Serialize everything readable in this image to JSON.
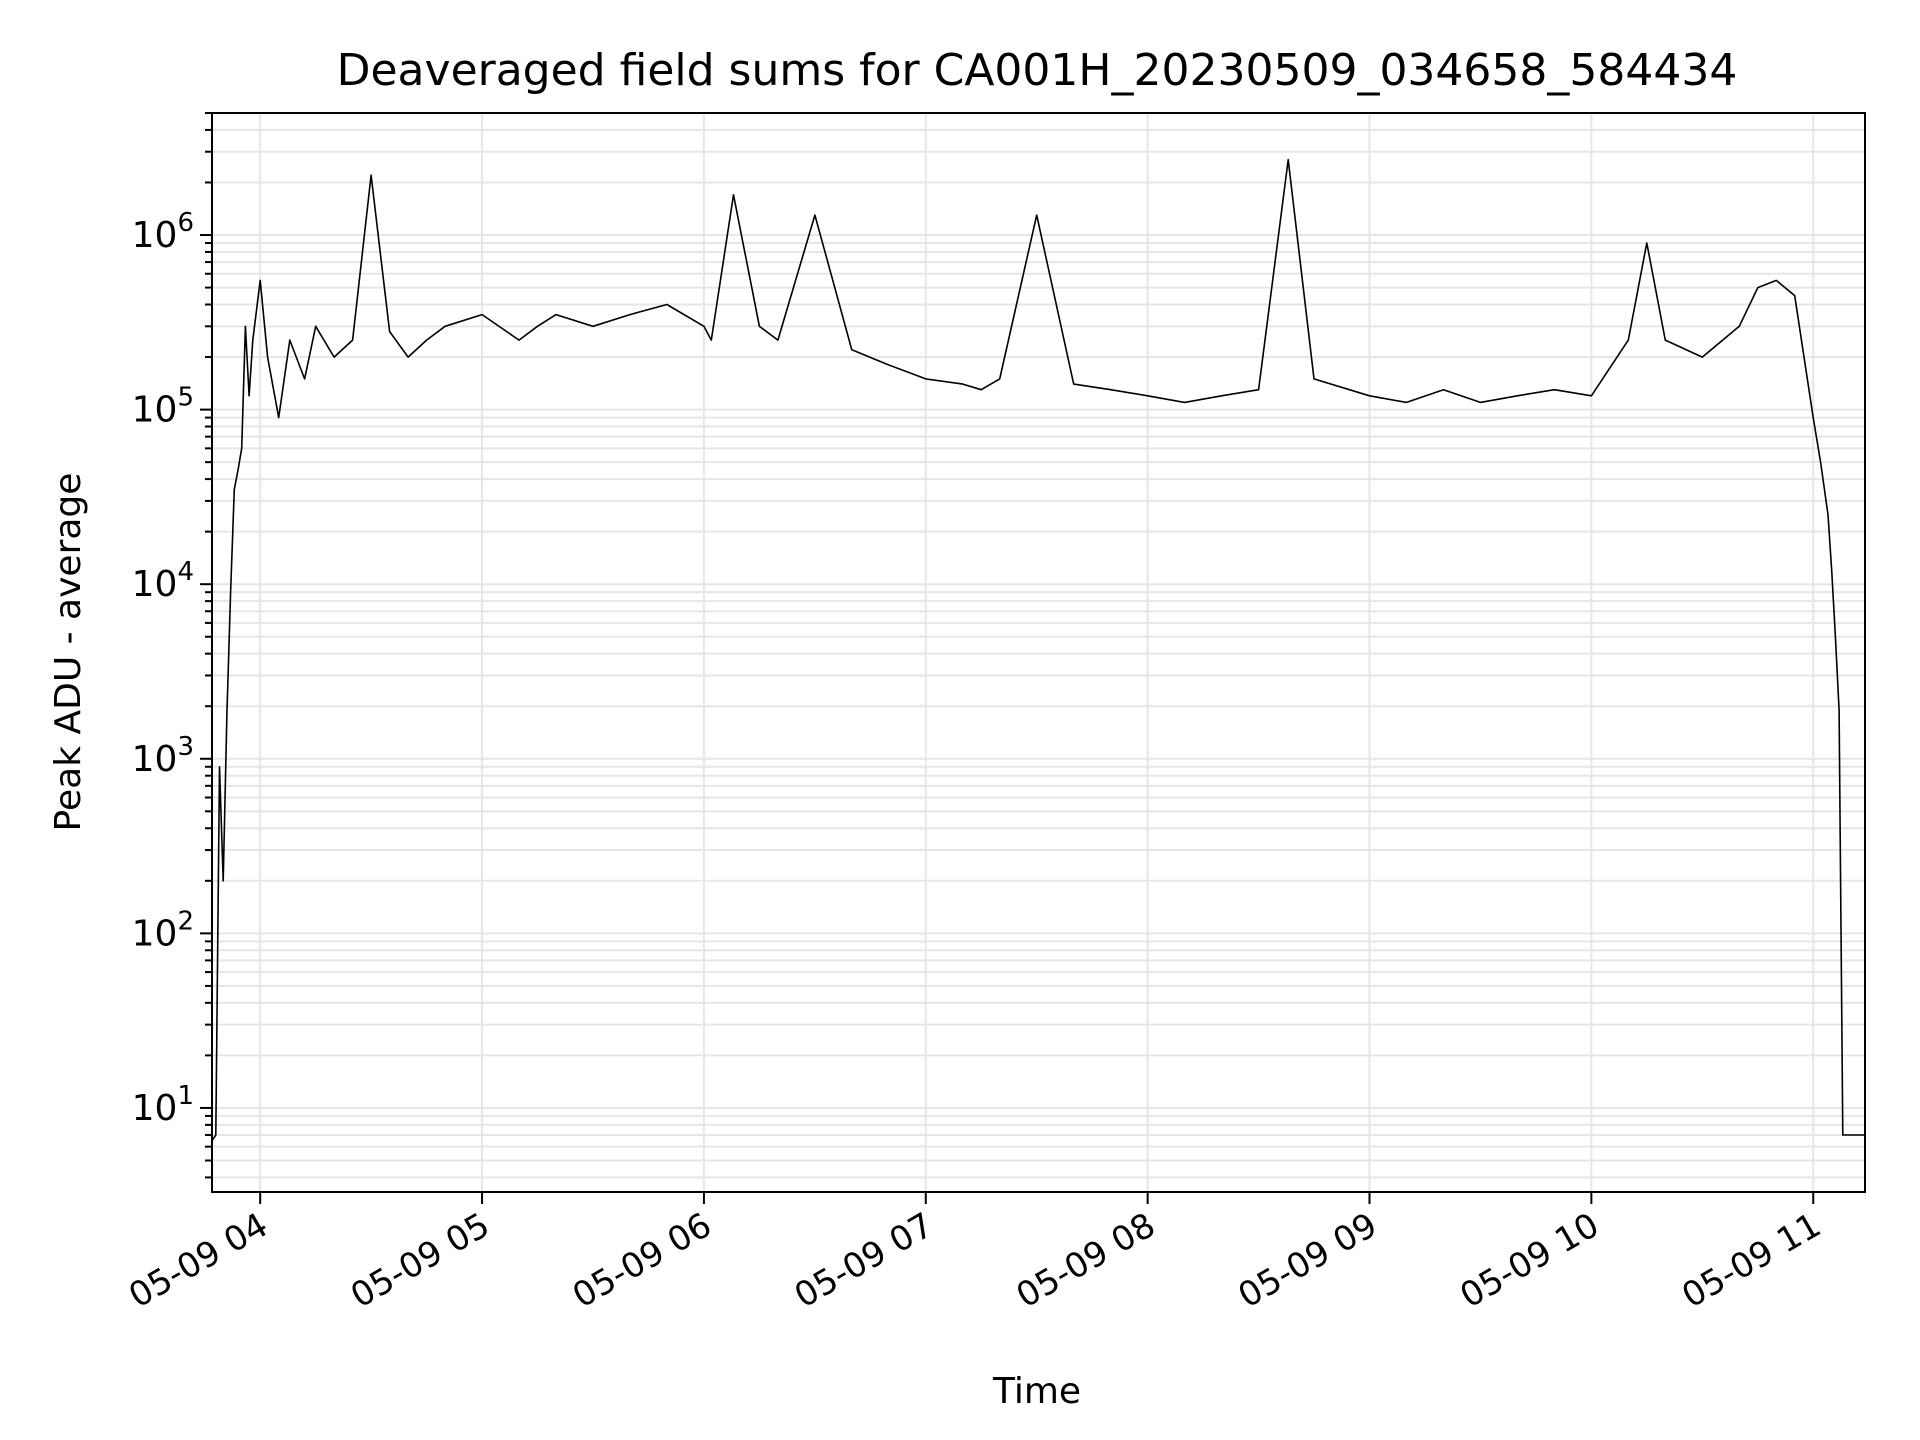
{
  "chart_data": {
    "type": "line",
    "title": "Deaveraged field sums for CA001H_20230509_034658_584434",
    "xlabel": "Time",
    "ylabel": "Peak ADU - average",
    "x_range": [
      "2023-05-09 03:46:58",
      "2023-05-09 11:14:00"
    ],
    "ylim": [
      3.3,
      5000000
    ],
    "y_scale": "log",
    "grid": true,
    "grid_color": "#e6e6e6",
    "line_color": "#000000",
    "x_ticks": [
      {
        "label": "05-09 04",
        "value": "2023-05-09 04:00"
      },
      {
        "label": "05-09 05",
        "value": "2023-05-09 05:00"
      },
      {
        "label": "05-09 06",
        "value": "2023-05-09 06:00"
      },
      {
        "label": "05-09 07",
        "value": "2023-05-09 07:00"
      },
      {
        "label": "05-09 08",
        "value": "2023-05-09 08:00"
      },
      {
        "label": "05-09 09",
        "value": "2023-05-09 09:00"
      },
      {
        "label": "05-09 10",
        "value": "2023-05-09 10:00"
      },
      {
        "label": "05-09 11",
        "value": "2023-05-09 11:00"
      }
    ],
    "y_ticks": [
      {
        "base": "10",
        "exp": "1",
        "value": 10
      },
      {
        "base": "10",
        "exp": "2",
        "value": 100
      },
      {
        "base": "10",
        "exp": "3",
        "value": 1000
      },
      {
        "base": "10",
        "exp": "4",
        "value": 10000
      },
      {
        "base": "10",
        "exp": "5",
        "value": 100000
      },
      {
        "base": "10",
        "exp": "6",
        "value": 1000000
      }
    ],
    "series": [
      {
        "x": [
          "2023-05-09 03:47",
          "2023-05-09 03:48",
          "2023-05-09 03:49",
          "2023-05-09 03:50",
          "2023-05-09 03:51",
          "2023-05-09 03:52",
          "2023-05-09 03:53",
          "2023-05-09 03:54",
          "2023-05-09 03:55",
          "2023-05-09 03:56",
          "2023-05-09 03:57",
          "2023-05-09 03:58",
          "2023-05-09 04:00",
          "2023-05-09 04:02",
          "2023-05-09 04:05",
          "2023-05-09 04:08",
          "2023-05-09 04:12",
          "2023-05-09 04:15",
          "2023-05-09 04:20",
          "2023-05-09 04:25",
          "2023-05-09 04:30",
          "2023-05-09 04:35",
          "2023-05-09 04:40",
          "2023-05-09 04:45",
          "2023-05-09 04:50",
          "2023-05-09 05:00",
          "2023-05-09 05:10",
          "2023-05-09 05:15",
          "2023-05-09 05:20",
          "2023-05-09 05:30",
          "2023-05-09 05:40",
          "2023-05-09 05:50",
          "2023-05-09 06:00",
          "2023-05-09 06:02",
          "2023-05-09 06:08",
          "2023-05-09 06:15",
          "2023-05-09 06:20",
          "2023-05-09 06:30",
          "2023-05-09 06:40",
          "2023-05-09 06:50",
          "2023-05-09 07:00",
          "2023-05-09 07:10",
          "2023-05-09 07:15",
          "2023-05-09 07:20",
          "2023-05-09 07:30",
          "2023-05-09 07:40",
          "2023-05-09 07:50",
          "2023-05-09 08:00",
          "2023-05-09 08:10",
          "2023-05-09 08:20",
          "2023-05-09 08:30",
          "2023-05-09 08:38",
          "2023-05-09 08:45",
          "2023-05-09 09:00",
          "2023-05-09 09:10",
          "2023-05-09 09:20",
          "2023-05-09 09:30",
          "2023-05-09 09:40",
          "2023-05-09 09:50",
          "2023-05-09 10:00",
          "2023-05-09 10:10",
          "2023-05-09 10:15",
          "2023-05-09 10:20",
          "2023-05-09 10:30",
          "2023-05-09 10:40",
          "2023-05-09 10:45",
          "2023-05-09 10:50",
          "2023-05-09 10:55",
          "2023-05-09 11:00",
          "2023-05-09 11:02",
          "2023-05-09 11:04",
          "2023-05-09 11:05",
          "2023-05-09 11:06",
          "2023-05-09 11:07",
          "2023-05-09 11:08",
          "2023-05-09 11:09",
          "2023-05-09 11:14"
        ],
        "y": [
          6.5,
          7,
          900,
          200,
          1800,
          9000,
          35000,
          45000,
          60000,
          300000,
          120000,
          250000,
          550000,
          200000,
          90000,
          250000,
          150000,
          300000,
          200000,
          250000,
          2200000,
          280000,
          200000,
          250000,
          300000,
          350000,
          250000,
          300000,
          350000,
          300000,
          350000,
          400000,
          300000,
          250000,
          1700000,
          300000,
          250000,
          1300000,
          220000,
          180000,
          150000,
          140000,
          130000,
          150000,
          1300000,
          140000,
          130000,
          120000,
          110000,
          120000,
          130000,
          2700000,
          150000,
          120000,
          110000,
          130000,
          110000,
          120000,
          130000,
          120000,
          250000,
          900000,
          250000,
          200000,
          300000,
          500000,
          550000,
          450000,
          90000,
          50000,
          25000,
          12000,
          5000,
          1900,
          7,
          7,
          7
        ]
      }
    ]
  }
}
